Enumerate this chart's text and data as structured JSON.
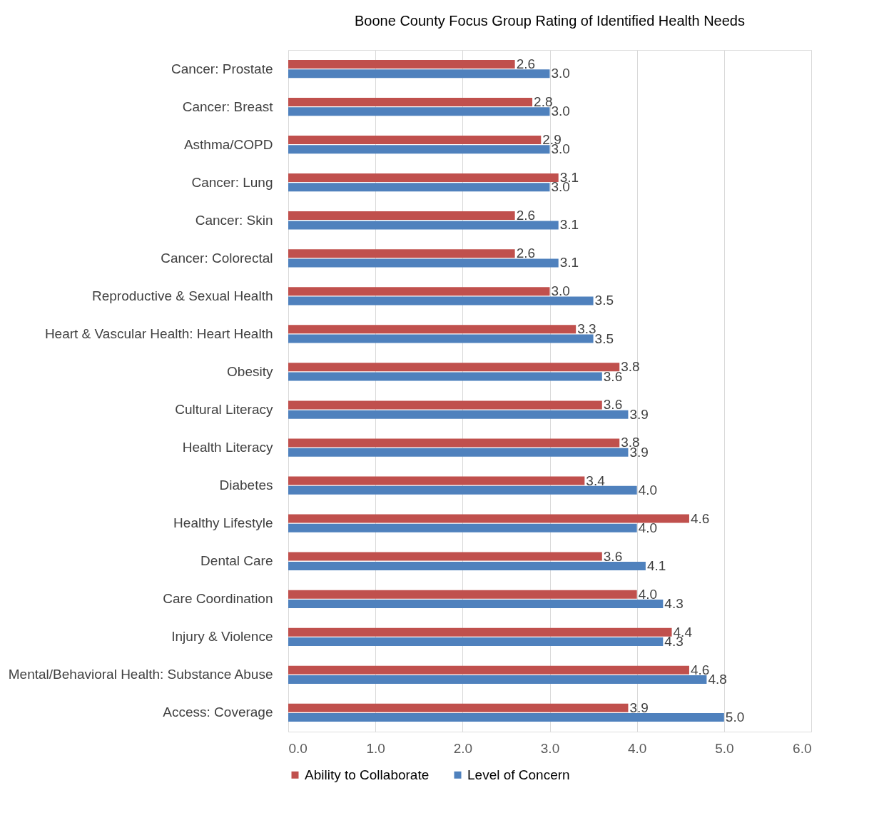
{
  "chart_data": {
    "type": "bar",
    "orientation": "horizontal",
    "title": "Boone County Focus Group Rating of Identified Health Needs",
    "categories": [
      "Cancer: Prostate",
      "Cancer: Breast",
      "Asthma/COPD",
      "Cancer: Lung",
      "Cancer: Skin",
      "Cancer: Colorectal",
      "Reproductive & Sexual Health",
      "Heart & Vascular Health: Heart Health",
      "Obesity",
      "Cultural Literacy",
      "Health Literacy",
      "Diabetes",
      "Healthy Lifestyle",
      "Dental Care",
      "Care Coordination",
      "Injury & Violence",
      "Mental/Behavioral Health: Substance Abuse",
      "Access: Coverage"
    ],
    "series": [
      {
        "name": "Ability to Collaborate",
        "color": "#c0504d",
        "values": [
          2.6,
          2.8,
          2.9,
          3.1,
          2.6,
          2.6,
          3.0,
          3.3,
          3.8,
          3.6,
          3.8,
          3.4,
          4.6,
          3.6,
          4.0,
          4.4,
          4.6,
          3.9
        ],
        "value_labels": [
          "2.6",
          "2.8",
          "2.9",
          "3.1",
          "2.6",
          "2.6",
          "3.0",
          "3.3",
          "3.8",
          "3.6",
          "3.8",
          "3.4",
          "4.6",
          "3.6",
          "4.0",
          "4.4",
          "4.6",
          "3.9"
        ]
      },
      {
        "name": "Level of Concern",
        "color": "#4f81bd",
        "values": [
          3.0,
          3.0,
          3.0,
          3.0,
          3.1,
          3.1,
          3.5,
          3.5,
          3.6,
          3.9,
          3.9,
          4.0,
          4.0,
          4.1,
          4.3,
          4.3,
          4.8,
          5.0
        ],
        "value_labels": [
          "3.0",
          "3.0",
          "3.0",
          "3.0",
          "3.1",
          "3.1",
          "3.5",
          "3.5",
          "3.6",
          "3.9",
          "3.9",
          "4.0",
          "4.0",
          "4.1",
          "4.3",
          "4.3",
          "4.8",
          "5.0"
        ]
      }
    ],
    "xlim": [
      0,
      6
    ],
    "xticks": [
      {
        "value": 0,
        "label": "0.0"
      },
      {
        "value": 1,
        "label": "1.0"
      },
      {
        "value": 2,
        "label": "2.0"
      },
      {
        "value": 3,
        "label": "3.0"
      },
      {
        "value": 4,
        "label": "4.0"
      },
      {
        "value": 5,
        "label": "5.0"
      },
      {
        "value": 6,
        "label": "6.0"
      }
    ],
    "grid": "x",
    "legend": "bottom"
  }
}
